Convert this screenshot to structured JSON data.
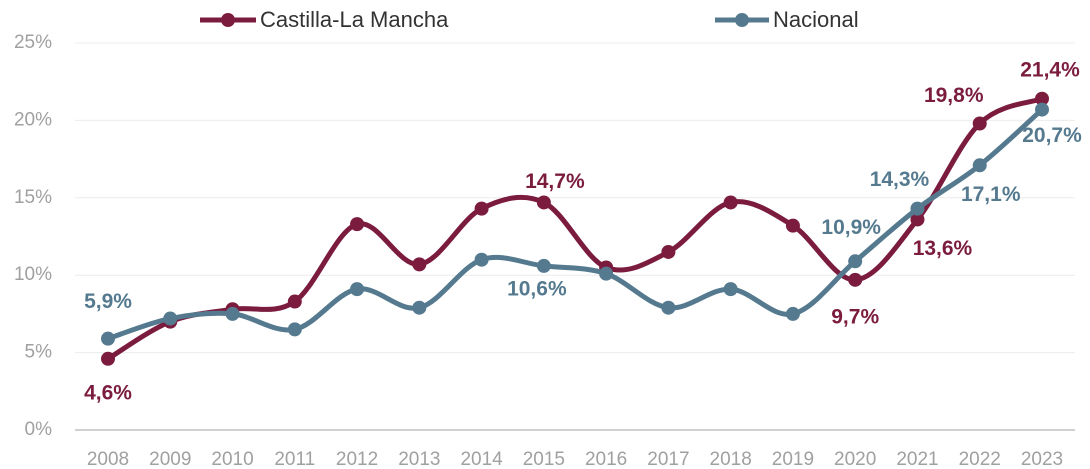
{
  "chart_data": {
    "type": "line",
    "categories": [
      "2008",
      "2009",
      "2010",
      "2011",
      "2012",
      "2013",
      "2014",
      "2015",
      "2016",
      "2017",
      "2018",
      "2019",
      "2020",
      "2021",
      "2022",
      "2023"
    ],
    "series": [
      {
        "name": "Castilla-La Mancha",
        "color": "#7b1c3e",
        "values": [
          4.6,
          7.0,
          7.8,
          8.3,
          13.3,
          10.7,
          14.3,
          14.7,
          10.5,
          11.5,
          14.7,
          13.2,
          9.7,
          13.6,
          19.8,
          21.4
        ],
        "value_labels": [
          "4,6%",
          null,
          null,
          null,
          null,
          null,
          null,
          "14,7%",
          null,
          null,
          null,
          null,
          "9,7%",
          "13,6%",
          "19,8%",
          "21,4%"
        ]
      },
      {
        "name": "Nacional",
        "color": "#557a8f",
        "values": [
          5.9,
          7.2,
          7.5,
          6.5,
          9.1,
          7.9,
          11.0,
          10.6,
          10.1,
          7.9,
          9.1,
          7.5,
          10.9,
          14.3,
          17.1,
          20.7
        ],
        "value_labels": [
          "5,9%",
          null,
          null,
          null,
          null,
          null,
          null,
          "10,6%",
          null,
          null,
          null,
          null,
          "10,9%",
          "14,3%",
          "17,1%",
          "20,7%"
        ]
      }
    ],
    "ylim": [
      0,
      25
    ],
    "yticks": [
      {
        "value": 0,
        "label": "0%"
      },
      {
        "value": 5,
        "label": "5%"
      },
      {
        "value": 10,
        "label": "10%"
      },
      {
        "value": 15,
        "label": "15%"
      },
      {
        "value": 20,
        "label": "20%"
      },
      {
        "value": 25,
        "label": "25%"
      }
    ],
    "grid": true,
    "legend": "top"
  }
}
